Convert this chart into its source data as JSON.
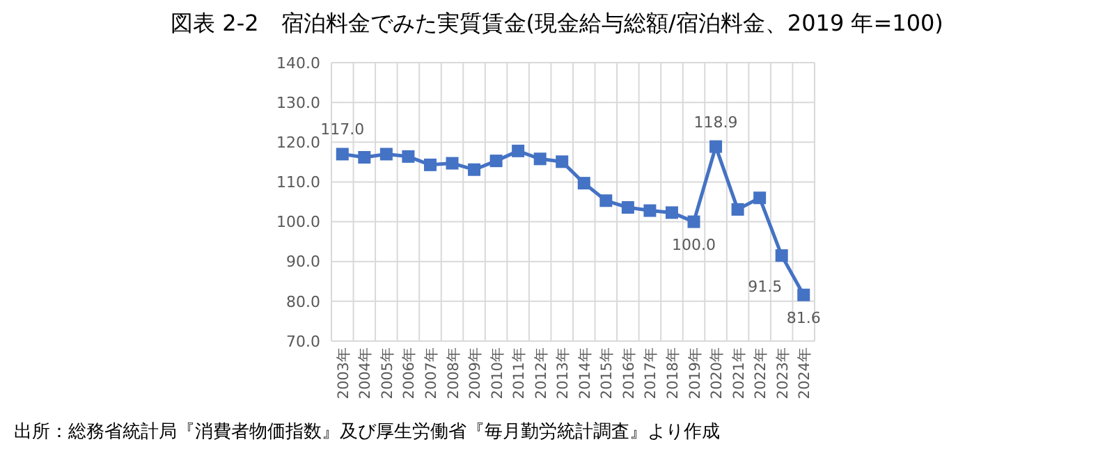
{
  "chart_data": {
    "type": "line",
    "title": "図表 2-2　宿泊料金でみた実質賃金(現金給与総額/宿泊料金、2019 年=100)",
    "categories": [
      "2003年",
      "2004年",
      "2005年",
      "2006年",
      "2007年",
      "2008年",
      "2009年",
      "2010年",
      "2011年",
      "2012年",
      "2013年",
      "2014年",
      "2015年",
      "2016年",
      "2017年",
      "2018年",
      "2019年",
      "2020年",
      "2021年",
      "2022年",
      "2023年",
      "2024年"
    ],
    "series": [
      {
        "color": "#4472c4",
        "values": [
          117.0,
          116.2,
          117.0,
          116.4,
          114.3,
          114.7,
          113.1,
          115.3,
          117.8,
          115.8,
          115.1,
          109.7,
          105.3,
          103.6,
          102.8,
          102.3,
          100.0,
          118.9,
          103.1,
          106.0,
          91.5,
          81.6
        ],
        "value_labels": [
          "117.0",
          null,
          null,
          null,
          null,
          null,
          null,
          null,
          null,
          null,
          null,
          null,
          null,
          null,
          null,
          null,
          "100.0",
          "118.9",
          null,
          null,
          "91.5",
          "81.6"
        ]
      }
    ],
    "ylim": [
      70,
      140
    ],
    "yticks": [
      {
        "value": 70,
        "label": "70.0"
      },
      {
        "value": 80,
        "label": "80.0"
      },
      {
        "value": 90,
        "label": "90.0"
      },
      {
        "value": 100,
        "label": "100.0"
      },
      {
        "value": 110,
        "label": "110.0"
      },
      {
        "value": 120,
        "label": "120.0"
      },
      {
        "value": 130,
        "label": "130.0"
      },
      {
        "value": 140,
        "label": "140.0"
      }
    ],
    "grid": true,
    "marker": "square",
    "line_style": "solid",
    "annotations": [
      "出所：総務省統計局『消費者物価指数』及び厚生労働省『毎月勤労統計調査』より作成"
    ]
  }
}
